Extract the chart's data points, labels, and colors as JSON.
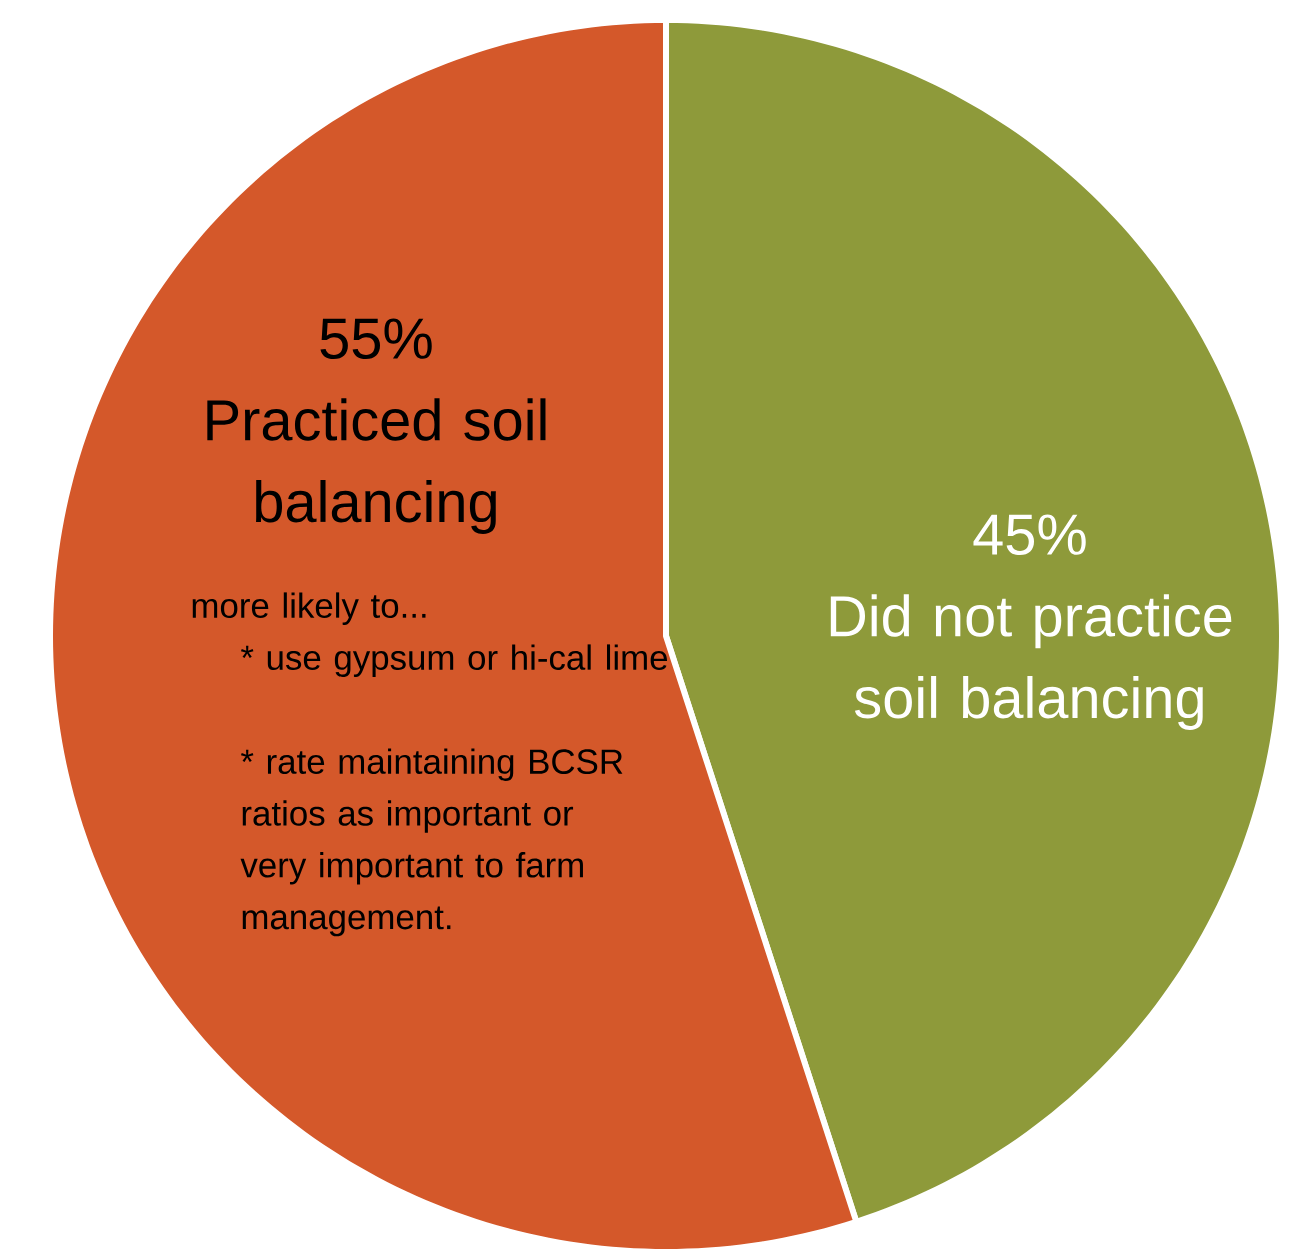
{
  "chart_data": {
    "type": "pie",
    "categories": [
      "Did not practice soil balancing",
      "Practiced soil balancing"
    ],
    "values": [
      45,
      55
    ],
    "value_labels": [
      "45%",
      "55%"
    ],
    "colors": [
      "#8e9a3a",
      "#d4582a"
    ],
    "annotations": [
      "more likely to...",
      "* use gypsum or hi-cal lime",
      "* rate maintaining BCSR ratios as important or very important to farm management."
    ]
  }
}
